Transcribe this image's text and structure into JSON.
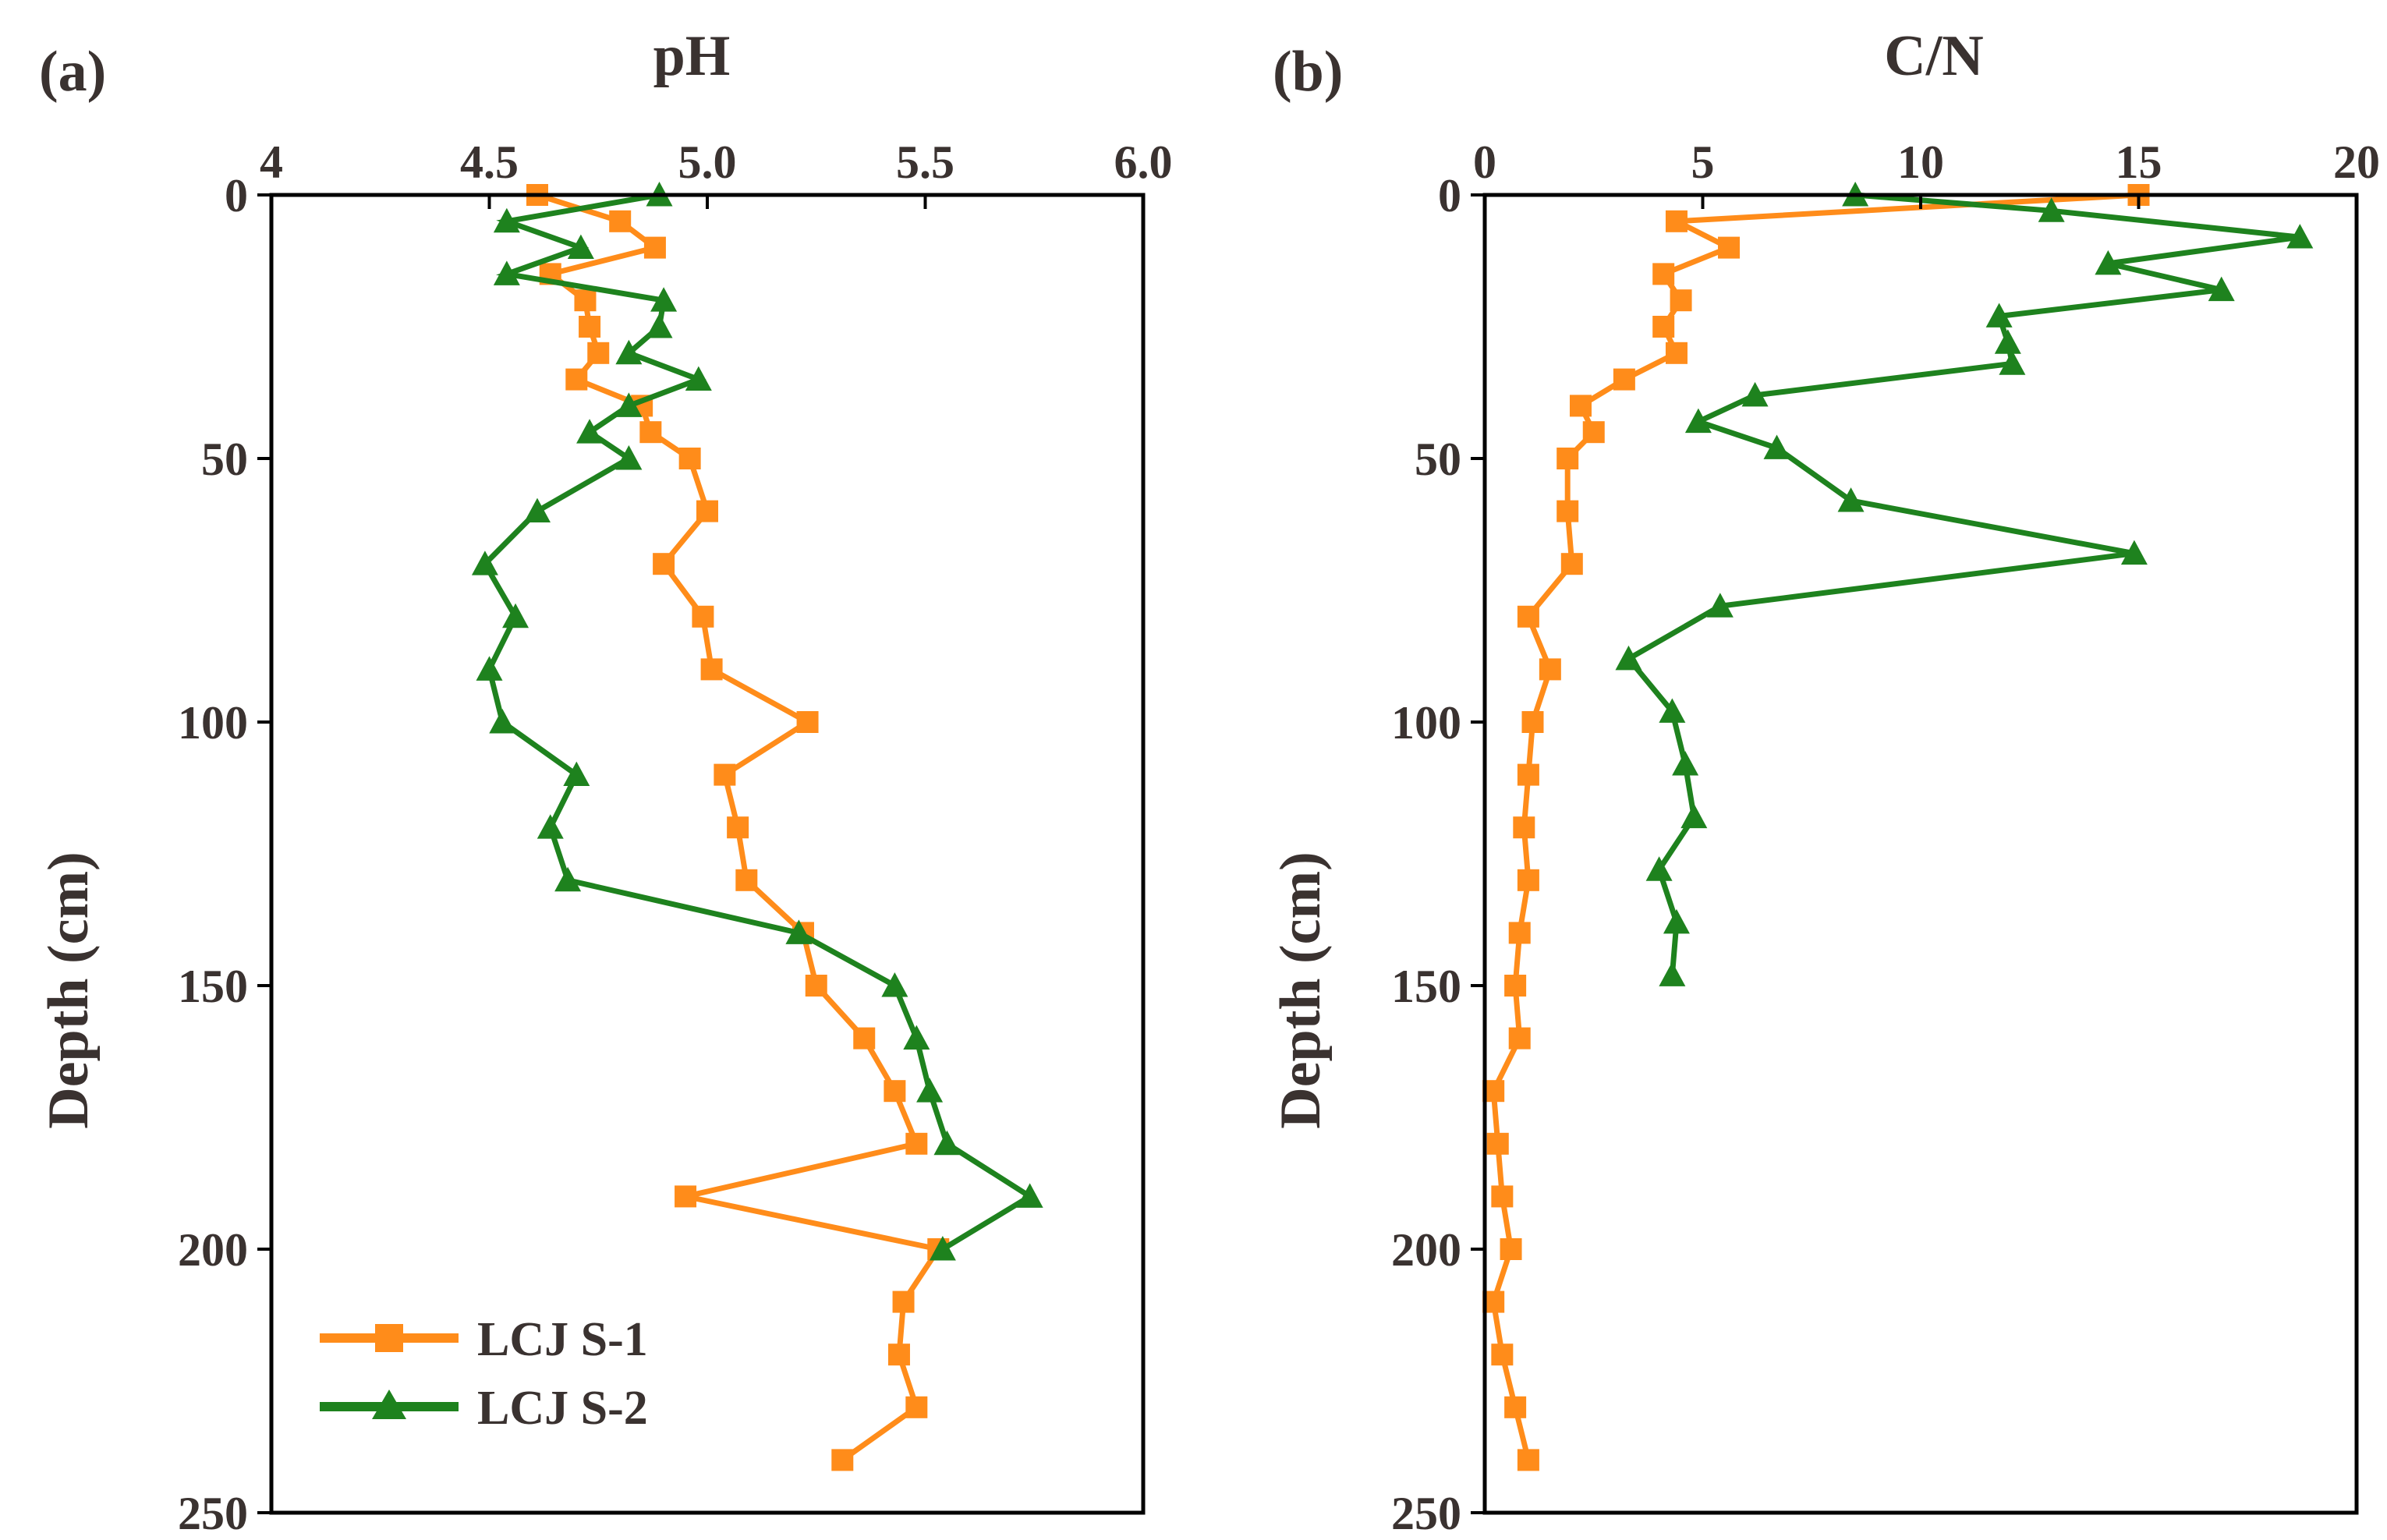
{
  "chart_data": [
    {
      "type": "line",
      "panel_label": "(a)",
      "title": "pH",
      "xlabel": "pH",
      "ylabel": "Depth (cm)",
      "xlim": [
        4,
        6
      ],
      "ylim": [
        250,
        0
      ],
      "x_axis_position": "top",
      "y_inverted": true,
      "grid": false,
      "x_ticks": [
        4,
        4.5,
        5,
        5.5,
        6
      ],
      "x_tick_labels": [
        "4",
        "4.5",
        "5.0",
        "5.5",
        "6.0"
      ],
      "y_ticks": [
        0,
        50,
        100,
        150,
        200,
        250
      ],
      "y_tick_labels": [
        "0",
        "50",
        "100",
        "150",
        "200",
        "250"
      ],
      "legend_position": "bottom-left",
      "series": [
        {
          "name": "LCJ S-1",
          "color": "#ff8c1a",
          "marker": "square",
          "points": [
            [
              4.61,
              0
            ],
            [
              4.8,
              5
            ],
            [
              4.88,
              10
            ],
            [
              4.64,
              15
            ],
            [
              4.72,
              20
            ],
            [
              4.73,
              25
            ],
            [
              4.75,
              30
            ],
            [
              4.7,
              35
            ],
            [
              4.85,
              40
            ],
            [
              4.87,
              45
            ],
            [
              4.96,
              50
            ],
            [
              5.0,
              60
            ],
            [
              4.9,
              70
            ],
            [
              4.99,
              80
            ],
            [
              5.01,
              90
            ],
            [
              5.23,
              100
            ],
            [
              5.04,
              110
            ],
            [
              5.07,
              120
            ],
            [
              5.09,
              130
            ],
            [
              5.22,
              140
            ],
            [
              5.25,
              150
            ],
            [
              5.36,
              160
            ],
            [
              5.43,
              170
            ],
            [
              5.48,
              180
            ],
            [
              4.95,
              190
            ],
            [
              5.53,
              200
            ],
            [
              5.45,
              210
            ],
            [
              5.44,
              220
            ],
            [
              5.48,
              230
            ],
            [
              5.31,
              240
            ]
          ]
        },
        {
          "name": "LCJ S-2",
          "color": "#1e821e",
          "marker": "triangle",
          "points": [
            [
              4.89,
              0
            ],
            [
              4.54,
              5
            ],
            [
              4.71,
              10
            ],
            [
              4.54,
              15
            ],
            [
              4.9,
              20
            ],
            [
              4.89,
              25
            ],
            [
              4.82,
              30
            ],
            [
              4.98,
              35
            ],
            [
              4.82,
              40
            ],
            [
              4.73,
              45
            ],
            [
              4.82,
              50
            ],
            [
              4.61,
              60
            ],
            [
              4.49,
              70
            ],
            [
              4.56,
              80
            ],
            [
              4.5,
              90
            ],
            [
              4.53,
              100
            ],
            [
              4.7,
              110
            ],
            [
              4.64,
              120
            ],
            [
              4.68,
              130
            ],
            [
              5.21,
              140
            ],
            [
              5.43,
              150
            ],
            [
              5.48,
              160
            ],
            [
              5.51,
              170
            ],
            [
              5.55,
              180
            ],
            [
              5.74,
              190
            ],
            [
              5.54,
              200
            ]
          ]
        }
      ]
    },
    {
      "type": "line",
      "panel_label": "(b)",
      "title": "C/N",
      "xlabel": "C/N",
      "ylabel": "Depth (cm)",
      "xlim": [
        0,
        20
      ],
      "ylim": [
        250,
        0
      ],
      "x_axis_position": "top",
      "y_inverted": true,
      "grid": false,
      "x_ticks": [
        0,
        5,
        10,
        15,
        20
      ],
      "x_tick_labels": [
        "0",
        "5",
        "10",
        "15",
        "20"
      ],
      "y_ticks": [
        0,
        50,
        100,
        150,
        200,
        250
      ],
      "y_tick_labels": [
        "0",
        "50",
        "100",
        "150",
        "200",
        "250"
      ],
      "series": [
        {
          "name": "LCJ S-1",
          "color": "#ff8c1a",
          "marker": "square",
          "points": [
            [
              15.0,
              0
            ],
            [
              4.4,
              5
            ],
            [
              5.6,
              10
            ],
            [
              4.1,
              15
            ],
            [
              4.5,
              20
            ],
            [
              4.1,
              25
            ],
            [
              4.4,
              30
            ],
            [
              3.2,
              35
            ],
            [
              2.2,
              40
            ],
            [
              2.5,
              45
            ],
            [
              1.9,
              50
            ],
            [
              1.9,
              60
            ],
            [
              2.0,
              70
            ],
            [
              1.0,
              80
            ],
            [
              1.5,
              90
            ],
            [
              1.1,
              100
            ],
            [
              1.0,
              110
            ],
            [
              0.9,
              120
            ],
            [
              1.0,
              130
            ],
            [
              0.8,
              140
            ],
            [
              0.7,
              150
            ],
            [
              0.8,
              160
            ],
            [
              0.2,
              170
            ],
            [
              0.3,
              180
            ],
            [
              0.4,
              190
            ],
            [
              0.6,
              200
            ],
            [
              0.2,
              210
            ],
            [
              0.4,
              220
            ],
            [
              0.7,
              230
            ],
            [
              1.0,
              240
            ]
          ]
        },
        {
          "name": "LCJ S-2",
          "color": "#1e821e",
          "marker": "triangle",
          "points": [
            [
              8.5,
              0
            ],
            [
              13.0,
              3
            ],
            [
              18.7,
              8
            ],
            [
              14.3,
              13
            ],
            [
              16.9,
              18
            ],
            [
              11.8,
              23
            ],
            [
              12.0,
              28
            ],
            [
              12.1,
              32
            ],
            [
              6.2,
              38
            ],
            [
              4.9,
              43
            ],
            [
              6.7,
              48
            ],
            [
              8.4,
              58
            ],
            [
              14.9,
              68
            ],
            [
              5.4,
              78
            ],
            [
              3.3,
              88
            ],
            [
              4.3,
              98
            ],
            [
              4.6,
              108
            ],
            [
              4.8,
              118
            ],
            [
              4.0,
              128
            ],
            [
              4.4,
              138
            ],
            [
              4.3,
              148
            ]
          ]
        }
      ]
    }
  ]
}
